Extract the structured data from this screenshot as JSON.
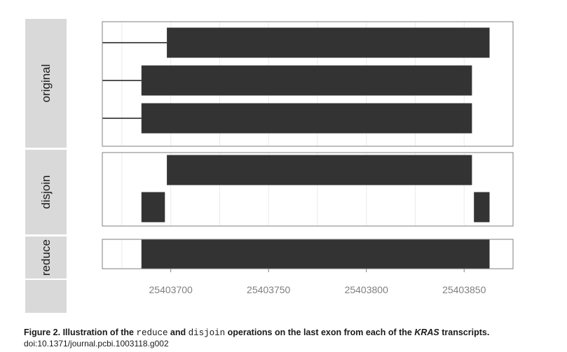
{
  "chart_data": {
    "type": "range-bar",
    "xticks": [
      25403700,
      25403750,
      25403800,
      25403850
    ],
    "xtick_labels": [
      "25403700",
      "25403750",
      "25403800",
      "25403850"
    ],
    "xlim": [
      25403665,
      25403875
    ],
    "colors": {
      "bar": "#333333",
      "strip": "#d9d9d9",
      "grid": "#ebebeb",
      "panel_border": "#7f7f7f",
      "tick_label": "#7f7f7f"
    },
    "panels": [
      {
        "name": "original",
        "rows": [
          {
            "start": 25403698,
            "end": 25403863,
            "line_from": 25403665
          },
          {
            "start": 25403685,
            "end": 25403854,
            "line_from": 25403665
          },
          {
            "start": 25403685,
            "end": 25403854,
            "line_from": 25403665
          }
        ]
      },
      {
        "name": "disjoin",
        "rows": [
          {
            "start": 25403698,
            "end": 25403854
          },
          {
            "start": 25403685,
            "end": 25403697
          },
          {
            "start": 25403855,
            "end": 25403863
          }
        ]
      },
      {
        "name": "reduce",
        "rows": [
          {
            "start": 25403685,
            "end": 25403863
          }
        ]
      }
    ]
  },
  "caption": {
    "prefix": "Figure 2. Illustration of the ",
    "code1": "reduce",
    "mid1": " and ",
    "code2": "disjoin",
    "mid2": " operations on the last exon from each of the ",
    "gene": "KRAS",
    "suffix": " transcripts.",
    "doi": "doi:10.1371/journal.pcbi.1003118.g002"
  }
}
